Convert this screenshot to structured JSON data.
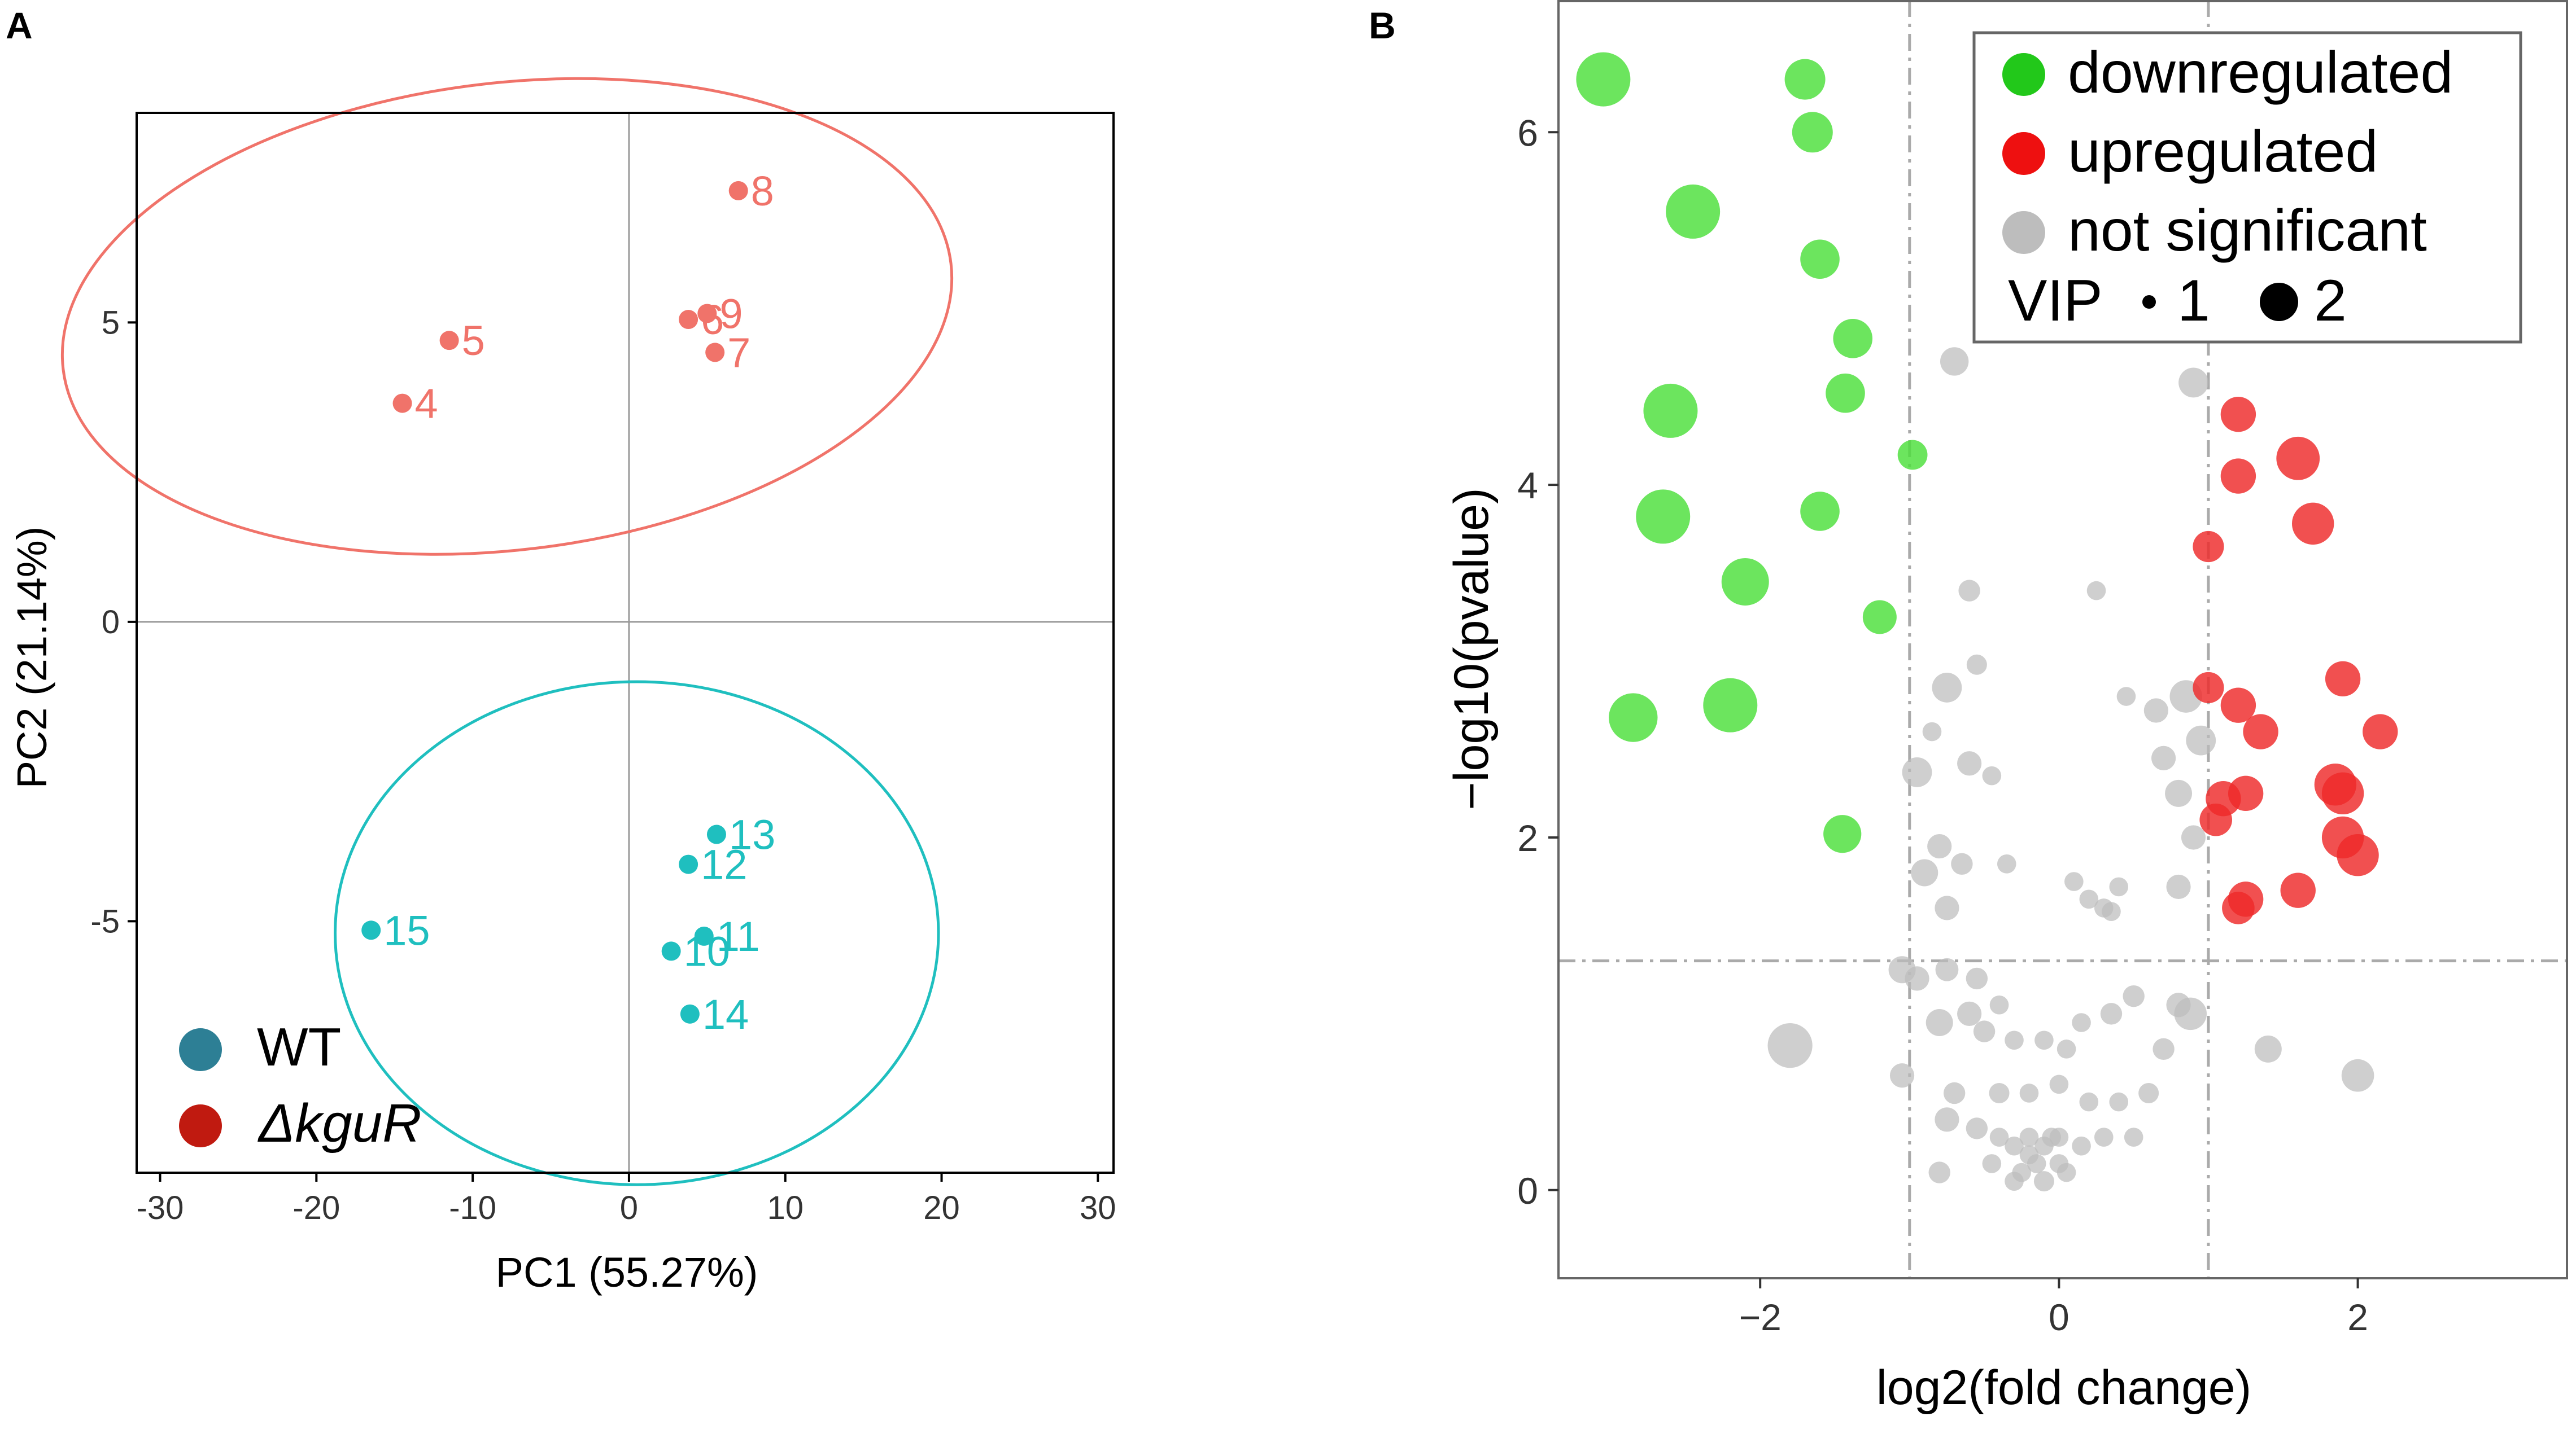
{
  "colors": {
    "wt": "#1fbfbf",
    "mutant": "#f0736a",
    "wt_legend": "#2d7f95",
    "mutant_legend": "#c01a10",
    "down": "#4cdf3a",
    "up": "#ee2a2a",
    "ns": "#bdbdbd",
    "down_legend": "#22c81a",
    "up_legend": "#ee1010",
    "ns_legend": "#bdbdbd",
    "axis": "#000000",
    "grid": "#9a9a9a"
  },
  "chart_data": [
    {
      "type": "scatter",
      "panel_label": "A",
      "title": "",
      "xlabel": "PC1 (55.27%)",
      "ylabel": "PC2 (21.14%)",
      "xlim": [
        -31.5,
        31
      ],
      "ylim": [
        -9.2,
        8.5
      ],
      "xticks": [
        -30,
        -20,
        -10,
        0,
        10,
        20,
        30
      ],
      "xtick_labels": [
        "-30",
        "-20",
        "-10",
        "0",
        "10",
        "20",
        "30"
      ],
      "yticks": [
        -5,
        0,
        5
      ],
      "ytick_labels": [
        "-5",
        "0",
        "5"
      ],
      "zero_lines": true,
      "legend_position": "bottom-left",
      "legend": [
        {
          "label": "WT",
          "color_key": "wt_legend",
          "italic": false
        },
        {
          "label": "ΔkguR",
          "color_key": "mutant_legend",
          "italic": true
        }
      ],
      "ellipses": [
        {
          "group": "mutant",
          "center": [
            -7.8,
            5.1
          ],
          "rx": 28.6,
          "ry": 3.9,
          "angle_deg": 6.8,
          "color_key": "mutant"
        },
        {
          "group": "WT",
          "center": [
            0.5,
            -5.2
          ],
          "rx": 19.3,
          "ry": 4.2,
          "angle_deg": 0,
          "color_key": "wt"
        }
      ],
      "series": [
        {
          "name": "ΔkguR",
          "color_key": "mutant",
          "points": [
            {
              "label": "4",
              "x": -14.5,
              "y": 3.65
            },
            {
              "label": "5",
              "x": -11.5,
              "y": 4.7
            },
            {
              "label": "6",
              "x": 3.8,
              "y": 5.05
            },
            {
              "label": "7",
              "x": 5.5,
              "y": 4.5
            },
            {
              "label": "8",
              "x": 7.0,
              "y": 7.2
            },
            {
              "label": "9",
              "x": 5.0,
              "y": 5.15
            }
          ]
        },
        {
          "name": "WT",
          "color_key": "wt",
          "points": [
            {
              "label": "10",
              "x": 2.7,
              "y": -5.5
            },
            {
              "label": "11",
              "x": 4.8,
              "y": -5.25
            },
            {
              "label": "12",
              "x": 3.8,
              "y": -4.05
            },
            {
              "label": "13",
              "x": 5.6,
              "y": -3.55
            },
            {
              "label": "14",
              "x": 3.9,
              "y": -6.55
            },
            {
              "label": "15",
              "x": -16.5,
              "y": -5.15
            }
          ]
        }
      ]
    },
    {
      "type": "scatter",
      "panel_label": "B",
      "title": "",
      "xlabel": "log2(fold change)",
      "ylabel": "−log10(pvalue)",
      "xlim": [
        -3.35,
        3.4
      ],
      "ylim": [
        -0.5,
        6.75
      ],
      "xticks": [
        -2,
        0,
        2
      ],
      "xtick_labels": [
        "−2",
        "0",
        "2"
      ],
      "yticks": [
        0,
        2,
        4,
        6
      ],
      "ytick_labels": [
        "0",
        "2",
        "4",
        "6"
      ],
      "threshold_lines": {
        "x": [
          -1,
          1
        ],
        "y": [
          1.3
        ]
      },
      "legend_position": "top-right",
      "legend": [
        {
          "label": "downregulated",
          "color_key": "down_legend"
        },
        {
          "label": "upregulated",
          "color_key": "up_legend"
        },
        {
          "label": "not significant",
          "color_key": "ns_legend"
        }
      ],
      "size_legend": {
        "title": "VIP",
        "items": [
          {
            "label": "1",
            "vip": 1
          },
          {
            "label": "2",
            "vip": 2
          }
        ]
      },
      "series": [
        {
          "name": "downregulated",
          "color_key": "down",
          "points": [
            [
              -3.05,
              6.3,
              2.0
            ],
            [
              -1.7,
              6.3,
              1.5
            ],
            [
              -1.65,
              6.0,
              1.5
            ],
            [
              -2.45,
              5.55,
              2.0
            ],
            [
              -1.6,
              5.28,
              1.45
            ],
            [
              -1.38,
              4.83,
              1.45
            ],
            [
              -1.43,
              4.52,
              1.45
            ],
            [
              -2.6,
              4.42,
              2.0
            ],
            [
              -0.98,
              4.17,
              1.1
            ],
            [
              -2.65,
              3.82,
              2.0
            ],
            [
              -1.6,
              3.85,
              1.45
            ],
            [
              -2.1,
              3.45,
              1.75
            ],
            [
              -1.2,
              3.25,
              1.25
            ],
            [
              -2.85,
              2.68,
              1.8
            ],
            [
              -2.2,
              2.75,
              2.0
            ],
            [
              -1.45,
              2.02,
              1.4
            ]
          ]
        },
        {
          "name": "upregulated",
          "color_key": "up",
          "points": [
            [
              1.2,
              4.4,
              1.3
            ],
            [
              1.6,
              4.15,
              1.6
            ],
            [
              1.2,
              4.05,
              1.3
            ],
            [
              1.7,
              3.78,
              1.55
            ],
            [
              1.0,
              3.65,
              1.15
            ],
            [
              1.0,
              2.85,
              1.15
            ],
            [
              1.9,
              2.9,
              1.3
            ],
            [
              1.2,
              2.75,
              1.3
            ],
            [
              1.35,
              2.6,
              1.3
            ],
            [
              2.15,
              2.6,
              1.3
            ],
            [
              1.85,
              2.3,
              1.55
            ],
            [
              1.9,
              2.25,
              1.55
            ],
            [
              1.25,
              2.25,
              1.3
            ],
            [
              1.1,
              2.22,
              1.3
            ],
            [
              1.05,
              2.1,
              1.2
            ],
            [
              1.9,
              2.0,
              1.55
            ],
            [
              2.0,
              1.9,
              1.55
            ],
            [
              1.6,
              1.7,
              1.3
            ],
            [
              1.25,
              1.65,
              1.3
            ],
            [
              1.2,
              1.6,
              1.2
            ]
          ]
        },
        {
          "name": "not significant",
          "color_key": "ns",
          "points": [
            [
              -0.7,
              4.7,
              1.05
            ],
            [
              0.9,
              4.58,
              1.1
            ],
            [
              -0.6,
              3.4,
              0.8
            ],
            [
              0.25,
              3.4,
              0.7
            ],
            [
              -0.75,
              2.85,
              1.1
            ],
            [
              -0.85,
              2.6,
              0.7
            ],
            [
              -0.55,
              2.98,
              0.75
            ],
            [
              0.45,
              2.8,
              0.7
            ],
            [
              0.65,
              2.72,
              0.9
            ],
            [
              0.85,
              2.8,
              1.2
            ],
            [
              0.95,
              2.55,
              1.1
            ],
            [
              0.7,
              2.45,
              0.9
            ],
            [
              -0.95,
              2.37,
              1.1
            ],
            [
              -0.6,
              2.42,
              0.9
            ],
            [
              -0.45,
              2.35,
              0.7
            ],
            [
              0.8,
              2.25,
              1.0
            ],
            [
              0.9,
              2.0,
              0.9
            ],
            [
              -0.8,
              1.95,
              0.9
            ],
            [
              -0.65,
              1.85,
              0.8
            ],
            [
              -0.35,
              1.85,
              0.7
            ],
            [
              -0.9,
              1.8,
              1.0
            ],
            [
              -0.75,
              1.6,
              0.9
            ],
            [
              0.1,
              1.75,
              0.7
            ],
            [
              0.4,
              1.72,
              0.7
            ],
            [
              0.8,
              1.72,
              0.9
            ],
            [
              0.2,
              1.65,
              0.7
            ],
            [
              0.3,
              1.6,
              0.7
            ],
            [
              0.35,
              1.58,
              0.7
            ],
            [
              -1.05,
              1.25,
              1.0
            ],
            [
              -0.95,
              1.2,
              0.9
            ],
            [
              -0.75,
              1.25,
              0.85
            ],
            [
              -0.55,
              1.2,
              0.8
            ],
            [
              -0.4,
              1.05,
              0.7
            ],
            [
              -0.6,
              1.0,
              0.9
            ],
            [
              -0.8,
              0.95,
              1.0
            ],
            [
              -0.5,
              0.9,
              0.8
            ],
            [
              -0.3,
              0.85,
              0.7
            ],
            [
              -0.1,
              0.85,
              0.7
            ],
            [
              0.05,
              0.8,
              0.7
            ],
            [
              0.15,
              0.95,
              0.7
            ],
            [
              0.35,
              1.0,
              0.8
            ],
            [
              0.5,
              1.1,
              0.8
            ],
            [
              0.8,
              1.05,
              0.9
            ],
            [
              0.88,
              1.0,
              1.2
            ],
            [
              0.7,
              0.8,
              0.8
            ],
            [
              1.4,
              0.8,
              1.0
            ],
            [
              2.0,
              0.65,
              1.2
            ],
            [
              -1.8,
              0.82,
              1.65
            ],
            [
              -1.05,
              0.65,
              0.9
            ],
            [
              -0.7,
              0.55,
              0.8
            ],
            [
              -0.4,
              0.55,
              0.75
            ],
            [
              -0.2,
              0.55,
              0.7
            ],
            [
              0.0,
              0.6,
              0.7
            ],
            [
              0.2,
              0.5,
              0.7
            ],
            [
              0.4,
              0.5,
              0.7
            ],
            [
              0.6,
              0.55,
              0.75
            ],
            [
              -0.55,
              0.35,
              0.8
            ],
            [
              -0.4,
              0.3,
              0.7
            ],
            [
              -0.3,
              0.25,
              0.7
            ],
            [
              -0.2,
              0.3,
              0.7
            ],
            [
              -0.1,
              0.25,
              0.7
            ],
            [
              0.0,
              0.3,
              0.7
            ],
            [
              0.15,
              0.25,
              0.7
            ],
            [
              0.3,
              0.3,
              0.7
            ],
            [
              0.5,
              0.3,
              0.7
            ],
            [
              -0.75,
              0.4,
              0.9
            ],
            [
              -0.8,
              0.1,
              0.8
            ],
            [
              -0.45,
              0.15,
              0.7
            ],
            [
              -0.25,
              0.1,
              0.7
            ],
            [
              -0.15,
              0.15,
              0.7
            ],
            [
              0.05,
              0.1,
              0.7
            ],
            [
              -0.1,
              0.05,
              0.75
            ],
            [
              -0.3,
              0.05,
              0.7
            ],
            [
              -0.2,
              0.2,
              0.7
            ],
            [
              0.0,
              0.15,
              0.7
            ],
            [
              -0.05,
              0.3,
              0.7
            ]
          ]
        }
      ]
    }
  ]
}
